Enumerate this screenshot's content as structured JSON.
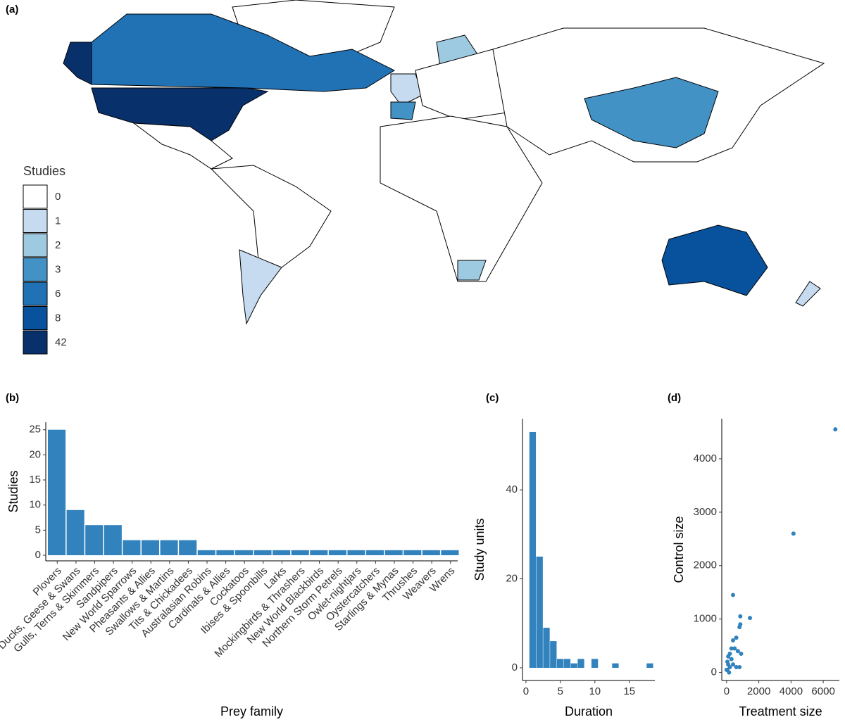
{
  "chart_data": [
    {
      "type": "choropleth",
      "panel": "(a)",
      "legend_title": "Studies",
      "categories": [
        "0",
        "1",
        "2",
        "3",
        "6",
        "8",
        "42"
      ],
      "colors": [
        "#ffffff",
        "#c6dbef",
        "#9ecae1",
        "#4292c6",
        "#2171b5",
        "#08519c",
        "#08306b"
      ]
    },
    {
      "type": "bar",
      "panel": "(b)",
      "xlabel": "Prey family",
      "ylabel": "Studies",
      "color": "#3182bd",
      "categories": [
        "Plovers",
        "Ducks, Geese & Swans",
        "Gulls, Terns & Skimmers",
        "Sandpipers",
        "New World Sparrows",
        "Pheasants & Allies",
        "Swallows & Martins",
        "Tits & Chickadees",
        "Australasian Robins",
        "Cardinals & Allies",
        "Cockatoos",
        "Ibises & Spoonbills",
        "Larks",
        "Mockingbirds & Thrashers",
        "New World Blackbirds",
        "Northern Storm Petrels",
        "Owlet-nightjars",
        "Oystercatchers",
        "Starlings & Mynas",
        "Thrushes",
        "Weavers",
        "Wrens"
      ],
      "values": [
        25,
        9,
        6,
        6,
        3,
        3,
        3,
        3,
        1,
        1,
        1,
        1,
        1,
        1,
        1,
        1,
        1,
        1,
        1,
        1,
        1,
        1
      ],
      "ylim": [
        0,
        26.5
      ],
      "yticks": [
        0,
        5,
        10,
        15,
        20,
        25
      ]
    },
    {
      "type": "histogram",
      "panel": "(c)",
      "xlabel": "Duration",
      "ylabel": "Study units",
      "color": "#3182bd",
      "bins": [
        0.5,
        1.5,
        2.5,
        3.5,
        4.5,
        5.5,
        6.5,
        7.5,
        8.5,
        9.5,
        10.5,
        11.5,
        12.5,
        13.5,
        14.5,
        15.5,
        16.5,
        17.5,
        18.5
      ],
      "counts": [
        53,
        25,
        9,
        6,
        2,
        2,
        1,
        2,
        0,
        2,
        0,
        0,
        1,
        0,
        0,
        0,
        0,
        1
      ],
      "xlim": [
        -0.5,
        18.7
      ],
      "xticks": [
        0,
        5,
        10,
        15
      ],
      "ylim": [
        0,
        56
      ],
      "yticks": [
        0,
        20,
        40
      ]
    },
    {
      "type": "scatter",
      "panel": "(d)",
      "xlabel": "Treatment size",
      "ylabel": "Control size",
      "color": "#3182bd",
      "x": [
        6750,
        4150,
        400,
        1450,
        850,
        850,
        800,
        600,
        400,
        700,
        900,
        200,
        100,
        300,
        50,
        100,
        200,
        400,
        600,
        50,
        150,
        0,
        800,
        300,
        500
      ],
      "y": [
        4550,
        2600,
        1450,
        1020,
        1050,
        900,
        850,
        650,
        600,
        400,
        350,
        350,
        300,
        250,
        200,
        150,
        100,
        150,
        100,
        50,
        0,
        50,
        100,
        450,
        450
      ],
      "xlim": [
        -300,
        7000
      ],
      "xticks": [
        0,
        2000,
        4000,
        6000
      ],
      "ylim": [
        -150,
        4750
      ],
      "yticks": [
        0,
        1000,
        2000,
        3000,
        4000
      ]
    }
  ]
}
